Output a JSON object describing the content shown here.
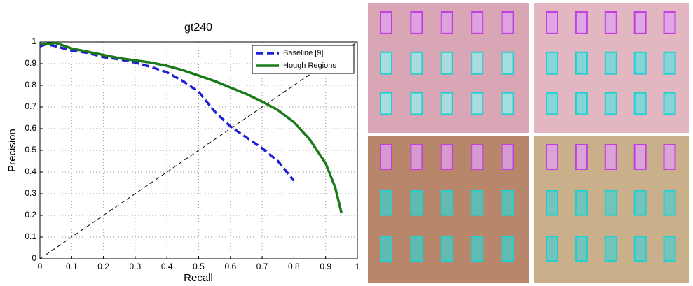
{
  "chart_data": {
    "type": "line",
    "title": "gt240",
    "x_label": "Recall",
    "y_label": "Precision",
    "xlim": [
      0,
      1
    ],
    "ylim": [
      0,
      1
    ],
    "xticks": [
      0,
      0.1,
      0.2,
      0.3,
      0.4,
      0.5,
      0.6,
      0.7,
      0.8,
      0.9,
      1
    ],
    "yticks": [
      0,
      0.1,
      0.2,
      0.3,
      0.4,
      0.5,
      0.6,
      0.7,
      0.8,
      0.9,
      1
    ],
    "grid": true,
    "legend": "upper right",
    "series": [
      {
        "name": "Baseline [9]",
        "color": "#1f1fd6",
        "dash": true,
        "x": [
          0,
          0.02,
          0.05,
          0.1,
          0.15,
          0.2,
          0.25,
          0.3,
          0.35,
          0.4,
          0.45,
          0.5,
          0.55,
          0.6,
          0.65,
          0.7,
          0.75,
          0.8
        ],
        "values": [
          0.98,
          0.99,
          0.98,
          0.96,
          0.95,
          0.93,
          0.92,
          0.905,
          0.885,
          0.86,
          0.82,
          0.77,
          0.68,
          0.61,
          0.56,
          0.51,
          0.45,
          0.36
        ]
      },
      {
        "name": "Hough Regions",
        "color": "#1a7a1a",
        "dash": false,
        "x": [
          0,
          0.05,
          0.1,
          0.15,
          0.2,
          0.25,
          0.3,
          0.35,
          0.4,
          0.45,
          0.5,
          0.55,
          0.6,
          0.65,
          0.7,
          0.75,
          0.8,
          0.85,
          0.9,
          0.93,
          0.95
        ],
        "values": [
          0.99,
          0.995,
          0.97,
          0.955,
          0.94,
          0.925,
          0.915,
          0.905,
          0.89,
          0.87,
          0.845,
          0.82,
          0.79,
          0.76,
          0.725,
          0.685,
          0.63,
          0.55,
          0.44,
          0.33,
          0.21
        ]
      }
    ]
  }
}
